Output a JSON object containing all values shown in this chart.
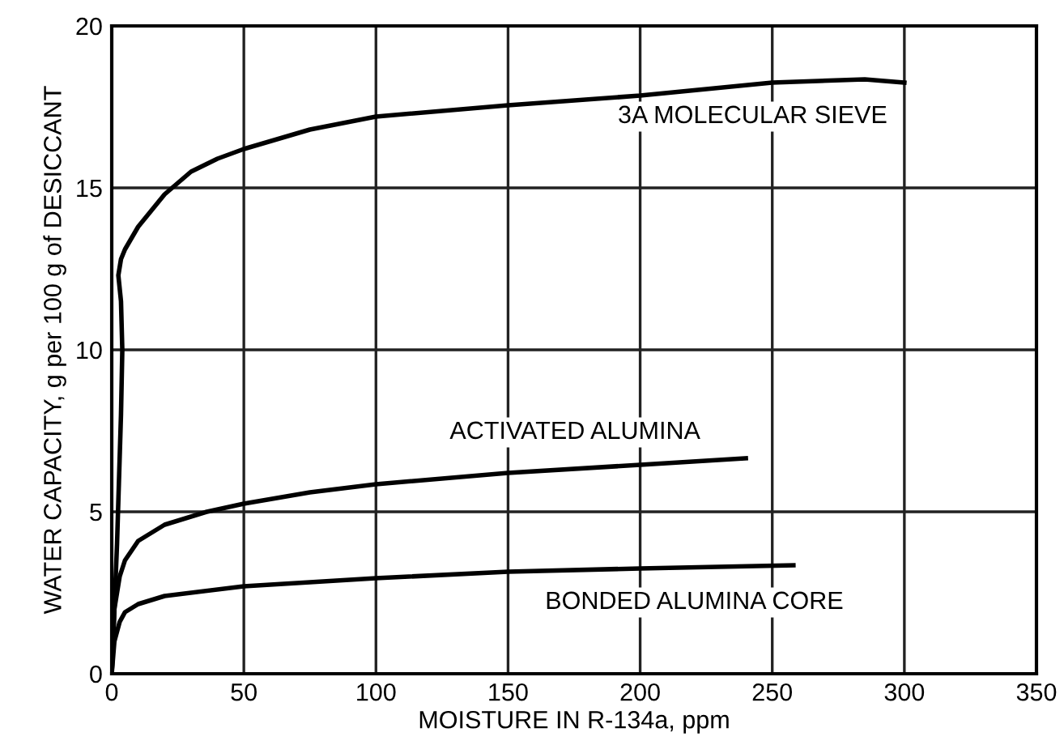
{
  "chart_data": {
    "type": "line",
    "xlabel": "MOISTURE IN R-134a, ppm",
    "ylabel": "WATER CAPACITY, g per 100 g of DESICCANT",
    "xlim": [
      0,
      350
    ],
    "ylim": [
      0,
      20
    ],
    "xticks": [
      0,
      50,
      100,
      150,
      200,
      250,
      300,
      350
    ],
    "yticks": [
      0,
      5,
      10,
      15,
      20
    ],
    "grid": true,
    "marker": "none",
    "line_style": "solid",
    "series": [
      {
        "color": "#000000",
        "x": [
          0,
          2,
          3.5,
          4,
          3.5,
          2.5,
          3.5,
          5,
          10,
          20,
          30,
          40,
          50,
          75,
          100,
          150,
          200,
          250,
          285,
          300
        ],
        "values": [
          0,
          4,
          8,
          10,
          11.5,
          12.3,
          12.8,
          13.1,
          13.8,
          14.8,
          15.5,
          15.9,
          16.2,
          16.8,
          17.2,
          17.55,
          17.85,
          18.25,
          18.35,
          18.25
        ]
      },
      {
        "color": "#000000",
        "x": [
          0,
          1,
          3,
          5,
          10,
          20,
          36,
          50,
          75,
          100,
          150,
          200,
          240
        ],
        "values": [
          0,
          2,
          3,
          3.5,
          4.1,
          4.6,
          5,
          5.25,
          5.6,
          5.85,
          6.2,
          6.45,
          6.65
        ]
      },
      {
        "color": "#000000",
        "x": [
          0,
          1,
          3,
          5,
          10,
          20,
          50,
          100,
          150,
          200,
          258
        ],
        "values": [
          0,
          1,
          1.6,
          1.9,
          2.15,
          2.4,
          2.7,
          2.95,
          3.15,
          3.25,
          3.35
        ]
      }
    ],
    "annotations": [
      "3A MOLECULAR SIEVE",
      "ACTIVATED ALUMINA",
      "BONDED ALUMINA CORE"
    ]
  }
}
